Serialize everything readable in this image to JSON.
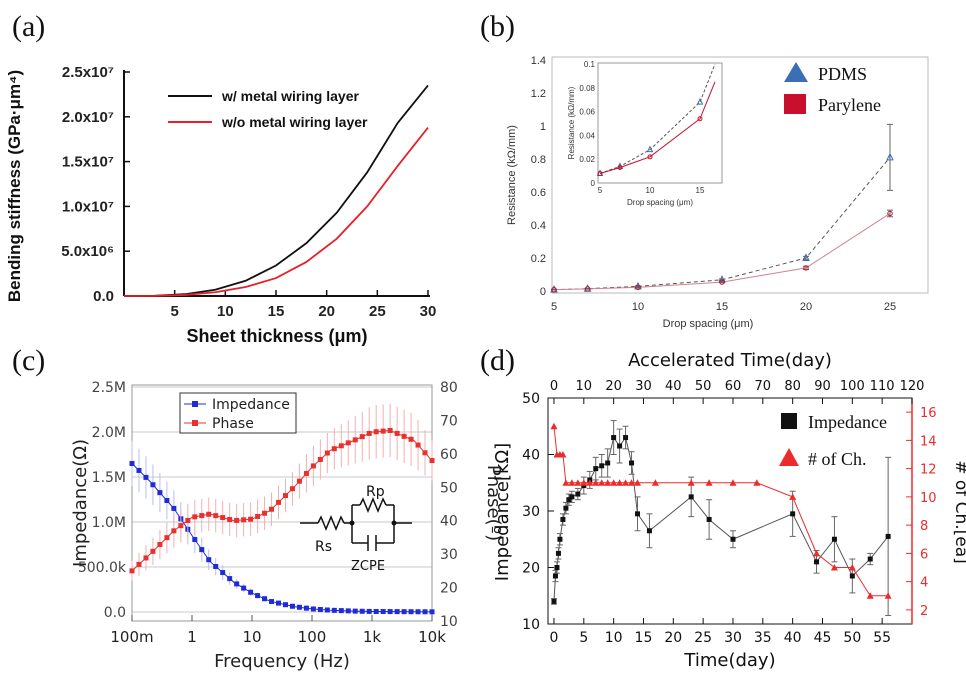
{
  "panels": {
    "a": {
      "label": "(a)"
    },
    "b": {
      "label": "(b)"
    },
    "c": {
      "label": "(c)",
      "circuit": {
        "rs": "Rs",
        "rp": "Rp",
        "zcpe": "ZCPE"
      }
    },
    "d": {
      "label": "(d)"
    }
  },
  "chart_data": [
    {
      "id": "a",
      "type": "line",
      "xlabel": "Sheet thickness (μm)",
      "ylabel": "Bending stiffness (GPa·μm⁴)",
      "xlim": [
        0,
        30
      ],
      "ylim": [
        0,
        25000000
      ],
      "x_ticks": [
        5,
        10,
        15,
        20,
        25,
        30
      ],
      "y_ticks": [
        0,
        5000000,
        10000000,
        15000000,
        20000000,
        25000000
      ],
      "y_tick_labels": [
        "0.0",
        "5.0x10⁶",
        "1.0x10⁷",
        "1.5x10⁷",
        "2.0x10⁷",
        "2.5x10⁷"
      ],
      "legend_position": "top-left",
      "grid": false,
      "series": [
        {
          "name": "w/  metal wiring layer",
          "color": "#111111",
          "x": [
            0,
            3,
            6,
            9,
            12,
            15,
            18,
            21,
            24,
            27,
            30
          ],
          "y": [
            0,
            25000,
            200000,
            700000,
            1700000,
            3400000,
            5900000,
            9300000,
            13800000,
            19300000,
            23500000
          ]
        },
        {
          "name": "w/o metal wiring layer",
          "color": "#e8202a",
          "x": [
            0,
            3,
            6,
            9,
            12,
            15,
            18,
            21,
            24,
            27,
            30
          ],
          "y": [
            0,
            15000,
            120000,
            420000,
            1000000,
            2000000,
            3800000,
            6400000,
            10000000,
            14500000,
            18800000
          ]
        }
      ]
    },
    {
      "id": "b",
      "type": "line",
      "xlabel": "Drop spacing (μm)",
      "ylabel": "Resistance (kΩ/mm)",
      "xlim": [
        5,
        25
      ],
      "ylim": [
        0,
        1.4
      ],
      "x_ticks": [
        5,
        10,
        15,
        20,
        25
      ],
      "y_ticks": [
        0,
        0.2,
        0.4,
        0.6,
        0.8,
        1,
        1.2,
        1.4
      ],
      "y_tick_labels": [
        "0",
        "0.2",
        "0.4",
        "0.6",
        "0.8",
        "1",
        "1.2",
        "1.4"
      ],
      "legend_position": "right",
      "grid": false,
      "series": [
        {
          "name": "PDMS",
          "color": "#3a6fb5",
          "marker": "triangle",
          "x": [
            5,
            7,
            10,
            15,
            20,
            25
          ],
          "y": [
            0.008,
            0.014,
            0.028,
            0.068,
            0.2,
            0.81
          ],
          "err": [
            0.002,
            0.002,
            0.003,
            0.005,
            0.01,
            0.2
          ]
        },
        {
          "name": "Parylene",
          "color": "#c8102e",
          "marker": "square",
          "x": [
            5,
            7,
            10,
            15,
            20,
            25
          ],
          "y": [
            0.008,
            0.013,
            0.022,
            0.054,
            0.14,
            0.47
          ],
          "err": [
            0.002,
            0.002,
            0.002,
            0.004,
            0.01,
            0.02
          ]
        }
      ],
      "inset": {
        "xlabel": "Drop spacing (μm)",
        "ylabel": "Resistance (kΩ/mm)",
        "xlim": [
          5,
          17
        ],
        "ylim": [
          0,
          0.1
        ],
        "x_ticks": [
          5,
          10,
          15
        ],
        "y_ticks": [
          0,
          0.02,
          0.04,
          0.06,
          0.08,
          0.1
        ],
        "y_tick_labels": [
          "0",
          "0.02",
          "0.04",
          "0.06",
          "0.08",
          "0.1"
        ],
        "series": [
          {
            "name": "PDMS",
            "x": [
              5,
              7,
              10,
              15,
              16.5
            ],
            "y": [
              0.008,
              0.014,
              0.028,
              0.068,
              0.1
            ]
          },
          {
            "name": "Parylene",
            "x": [
              5,
              7,
              10,
              15,
              16.5
            ],
            "y": [
              0.008,
              0.013,
              0.022,
              0.054,
              0.085
            ]
          }
        ]
      }
    },
    {
      "id": "c",
      "type": "line",
      "xlabel": "Frequency (Hz)",
      "ylabel": "Impedance(Ω)",
      "y2label": "Phase(º)",
      "x_scale": "log",
      "xlim": [
        0.1,
        10000
      ],
      "x_ticks": [
        0.1,
        1,
        10,
        100,
        1000,
        10000
      ],
      "x_tick_labels": [
        "100m",
        "1",
        "10",
        "100",
        "1k",
        "10k"
      ],
      "ylim": [
        -100000,
        2500000
      ],
      "y_ticks": [
        0,
        500000,
        1000000,
        1500000,
        2000000,
        2500000
      ],
      "y_tick_labels": [
        "0.0",
        "500.0k",
        "1.0M",
        "1.5M",
        "2.0M",
        "2.5M"
      ],
      "y2lim": [
        10,
        80
      ],
      "y2_ticks": [
        10,
        20,
        30,
        40,
        50,
        60,
        70,
        80
      ],
      "y2_tick_labels": [
        "10",
        "20",
        "30",
        "40",
        "50",
        "60",
        "70",
        "80"
      ],
      "legend_position": "top-left",
      "grid": true,
      "series": [
        {
          "name": "Impedance",
          "color": "#1f2bd6",
          "marker": "square",
          "axis": "left",
          "x": [
            0.1,
            0.2,
            0.5,
            1,
            2,
            5,
            10,
            20,
            50,
            100,
            200,
            500,
            1000,
            10000
          ],
          "y": [
            1650000,
            1450000,
            1150000,
            850000,
            560000,
            330000,
            210000,
            120000,
            60000,
            35000,
            20000,
            10000,
            6000,
            2000
          ],
          "err": [
            250000,
            230000,
            200000,
            160000,
            110000,
            60000,
            40000,
            20000,
            10000,
            5000,
            3000,
            2000,
            1000,
            500
          ]
        },
        {
          "name": "Phase",
          "color": "#e8302f",
          "marker": "square",
          "axis": "right",
          "x": [
            0.1,
            0.2,
            0.5,
            1,
            2,
            5,
            10,
            20,
            50,
            100,
            200,
            500,
            1000,
            2000,
            5000,
            10000
          ],
          "y": [
            25,
            30,
            37,
            41,
            42,
            40,
            40.5,
            43,
            50,
            56,
            61,
            64,
            66.5,
            67,
            64,
            58
          ],
          "err": [
            3,
            4,
            5,
            5,
            5,
            5,
            5,
            5,
            5,
            6,
            6,
            7,
            8,
            8,
            8,
            6
          ]
        }
      ]
    },
    {
      "id": "d",
      "type": "line",
      "xlabel": "Time(day)",
      "x2label": "Accelerated Time(day)",
      "ylabel": "Impedance[kΩ]",
      "y2label": "# of Ch.[ea]",
      "xlim": [
        -1,
        60
      ],
      "x_ticks": [
        0,
        5,
        10,
        15,
        20,
        25,
        30,
        35,
        40,
        45,
        50,
        55
      ],
      "x2lim": [
        -2,
        120
      ],
      "x2_ticks": [
        0,
        10,
        20,
        30,
        40,
        50,
        60,
        70,
        80,
        90,
        100,
        110,
        120
      ],
      "ylim": [
        10,
        50
      ],
      "y_ticks": [
        10,
        20,
        30,
        40,
        50
      ],
      "y2lim": [
        1,
        17
      ],
      "y2_ticks": [
        2,
        4,
        6,
        8,
        10,
        12,
        14,
        16
      ],
      "legend_position": "top-right",
      "grid": false,
      "series": [
        {
          "name": "Impedance",
          "color": "#111111",
          "marker": "square",
          "axis": "left",
          "x": [
            0,
            0.25,
            0.5,
            0.75,
            1,
            1.5,
            2,
            2.5,
            3,
            4,
            5,
            6,
            7,
            8,
            9,
            10,
            11,
            12,
            13,
            14,
            16,
            23,
            26,
            30,
            40,
            44,
            47,
            50,
            53,
            56
          ],
          "y": [
            14,
            18.5,
            20,
            22.5,
            25,
            28.5,
            30.5,
            32,
            32.5,
            33,
            34.5,
            35.5,
            37.5,
            38,
            38.5,
            43,
            41.5,
            43,
            38.5,
            29.5,
            26.5,
            32.5,
            28.5,
            25,
            29.5,
            21,
            25,
            18.5,
            21.5,
            25.5
          ],
          "err": [
            0.5,
            1,
            1,
            1,
            1,
            1,
            1,
            1,
            1,
            1,
            1.5,
            1.5,
            2,
            2,
            2.5,
            3,
            3,
            2,
            2,
            3,
            3,
            3.5,
            3.5,
            1.5,
            4,
            2,
            4,
            3,
            1,
            14
          ]
        },
        {
          "name": "# of Ch.",
          "color": "#ec2c2c",
          "marker": "triangle",
          "axis": "right",
          "x": [
            0,
            0.5,
            1,
            1.5,
            2,
            3,
            4,
            5,
            6,
            7,
            8,
            9,
            10,
            11,
            12,
            13,
            14,
            17,
            23,
            26,
            30,
            34,
            40,
            44,
            47,
            50,
            53,
            56
          ],
          "y": [
            15,
            13,
            13,
            13,
            11,
            11,
            11,
            11,
            11,
            11,
            11,
            11,
            11,
            11,
            11,
            11,
            11,
            11,
            11,
            11,
            11,
            11,
            10,
            6,
            5,
            5,
            3,
            3
          ]
        }
      ]
    }
  ]
}
